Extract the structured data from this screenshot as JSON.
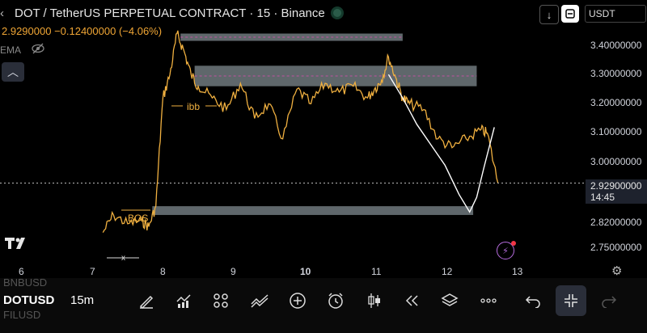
{
  "header": {
    "title": "DOT / TetherUS PERPETUAL CONTRACT · 15 · Binance",
    "price_change": "2.9290000  −0.12400000 (−4.06%)",
    "indicator": "EMA",
    "currency": "USDT"
  },
  "y_axis": {
    "ticks": [
      "3.40000000",
      "3.30000000",
      "3.20000000",
      "3.10000000",
      "3.00000000",
      "2.82000000",
      "2.75000000"
    ],
    "last_price": "2.92900000",
    "countdown": "14:45"
  },
  "x_axis": {
    "ticks": [
      "6",
      "7",
      "8",
      "9",
      "10",
      "11",
      "12",
      "13"
    ]
  },
  "annotations": {
    "ibb": "ibb",
    "bos": "BOS",
    "x": "x"
  },
  "toolbar": {
    "symbols": [
      "BNBUSD",
      "DOTUSD",
      "FILUSD"
    ],
    "active_symbol": "DOTUSD",
    "interval": "15m"
  },
  "colors": {
    "candle": "#f0b040",
    "zone": "#7f8a8f",
    "ema": "#ffffff",
    "dash": "#c050a0"
  },
  "chart_data": {
    "type": "line",
    "title": "DOT / TetherUS PERPETUAL CONTRACT · 15 · Binance",
    "xlabel": "",
    "ylabel": "",
    "ylim": [
      2.73,
      3.46
    ],
    "series": [
      {
        "name": "",
        "x": [
          7.15,
          7.3,
          7.5,
          7.7,
          7.8,
          7.9,
          8.0,
          8.1,
          8.2,
          8.3,
          8.4,
          8.5,
          8.7,
          8.9,
          9.1,
          9.3,
          9.5,
          9.7,
          9.9,
          10.1,
          10.3,
          10.5,
          10.7,
          10.9,
          11.0,
          11.1,
          11.2,
          11.3,
          11.4,
          11.5,
          11.7,
          11.9,
          12.1,
          12.3,
          12.5,
          12.6,
          12.75
        ],
        "y": [
          2.76,
          2.82,
          2.79,
          2.8,
          2.78,
          2.85,
          3.22,
          3.3,
          3.44,
          3.38,
          3.3,
          3.26,
          3.22,
          3.18,
          3.27,
          3.15,
          3.2,
          3.08,
          3.25,
          3.2,
          3.27,
          3.24,
          3.26,
          3.22,
          3.25,
          3.28,
          3.36,
          3.29,
          3.22,
          3.2,
          3.18,
          3.08,
          3.05,
          3.08,
          3.11,
          3.1,
          2.93
        ]
      },
      {
        "name": "EMA",
        "x": [
          11.2,
          11.4,
          11.6,
          11.8,
          12.0,
          12.2,
          12.35,
          12.45,
          12.55,
          12.7
        ],
        "y": [
          3.3,
          3.22,
          3.13,
          3.06,
          2.99,
          2.89,
          2.83,
          2.88,
          2.98,
          3.12
        ]
      }
    ],
    "zones": [
      {
        "x": [
          8.25,
          11.4
        ],
        "y": [
          3.415,
          3.44
        ]
      },
      {
        "x": [
          8.45,
          12.45
        ],
        "y": [
          3.26,
          3.33
        ]
      },
      {
        "x": [
          7.85,
          12.4
        ],
        "y": [
          2.82,
          2.85
        ]
      }
    ]
  }
}
